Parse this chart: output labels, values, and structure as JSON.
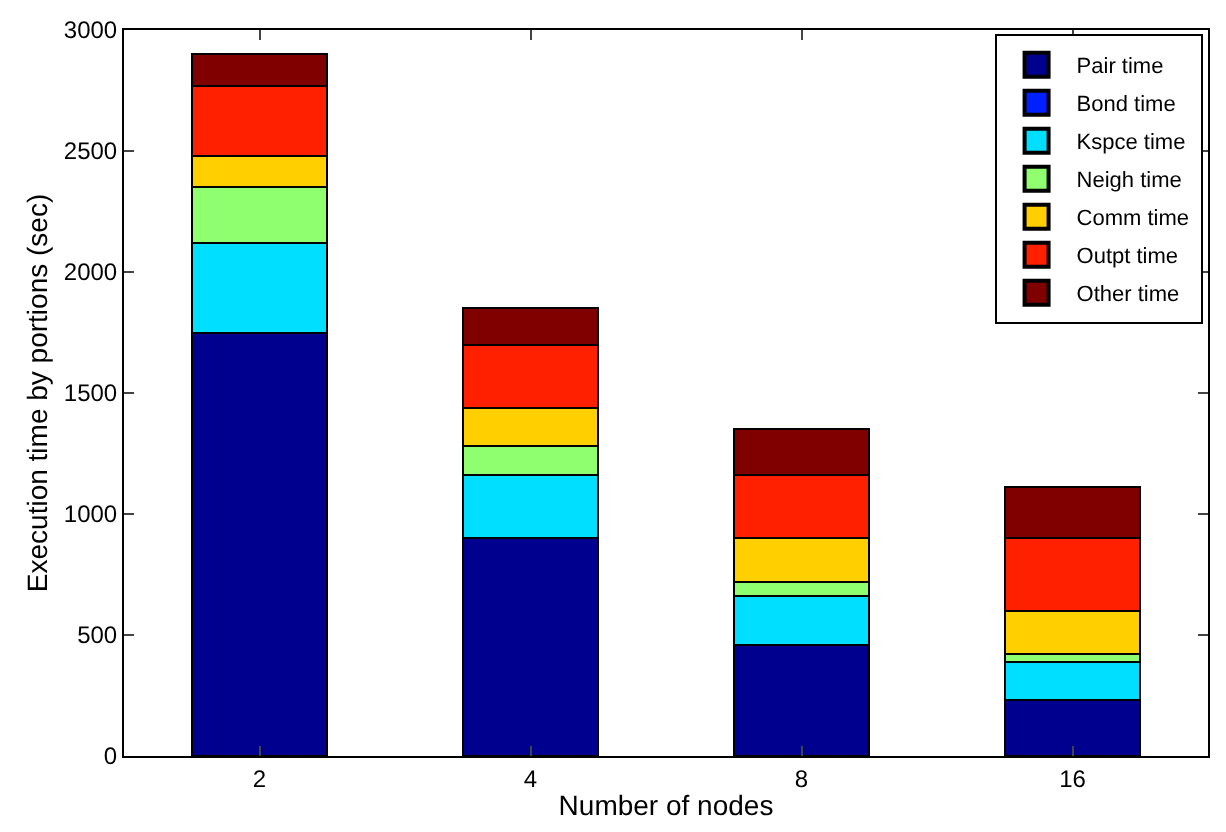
{
  "chart_data": {
    "type": "bar",
    "stacked": true,
    "xlabel": "Number of nodes",
    "ylabel": "Execution time by portions (sec)",
    "categories": [
      "2",
      "4",
      "8",
      "16"
    ],
    "series": [
      {
        "name": "Pair time",
        "color": "#00008f",
        "values": [
          1750,
          900,
          460,
          230
        ]
      },
      {
        "name": "Bond time",
        "color": "#0020ff",
        "values": [
          0,
          0,
          0,
          0
        ]
      },
      {
        "name": "Kspce time",
        "color": "#00dfff",
        "values": [
          370,
          260,
          200,
          160
        ]
      },
      {
        "name": "Neigh time",
        "color": "#8fff70",
        "values": [
          230,
          120,
          60,
          30
        ]
      },
      {
        "name": "Comm time",
        "color": "#ffcf00",
        "values": [
          130,
          160,
          180,
          180
        ]
      },
      {
        "name": "Outpt time",
        "color": "#ff2000",
        "values": [
          290,
          260,
          260,
          300
        ]
      },
      {
        "name": "Other time",
        "color": "#800000",
        "values": [
          130,
          150,
          190,
          210
        ]
      }
    ],
    "ylim": [
      0,
      3000
    ],
    "yticks": [
      0,
      500,
      1000,
      1500,
      2000,
      2500,
      3000
    ],
    "legend": "top right"
  }
}
